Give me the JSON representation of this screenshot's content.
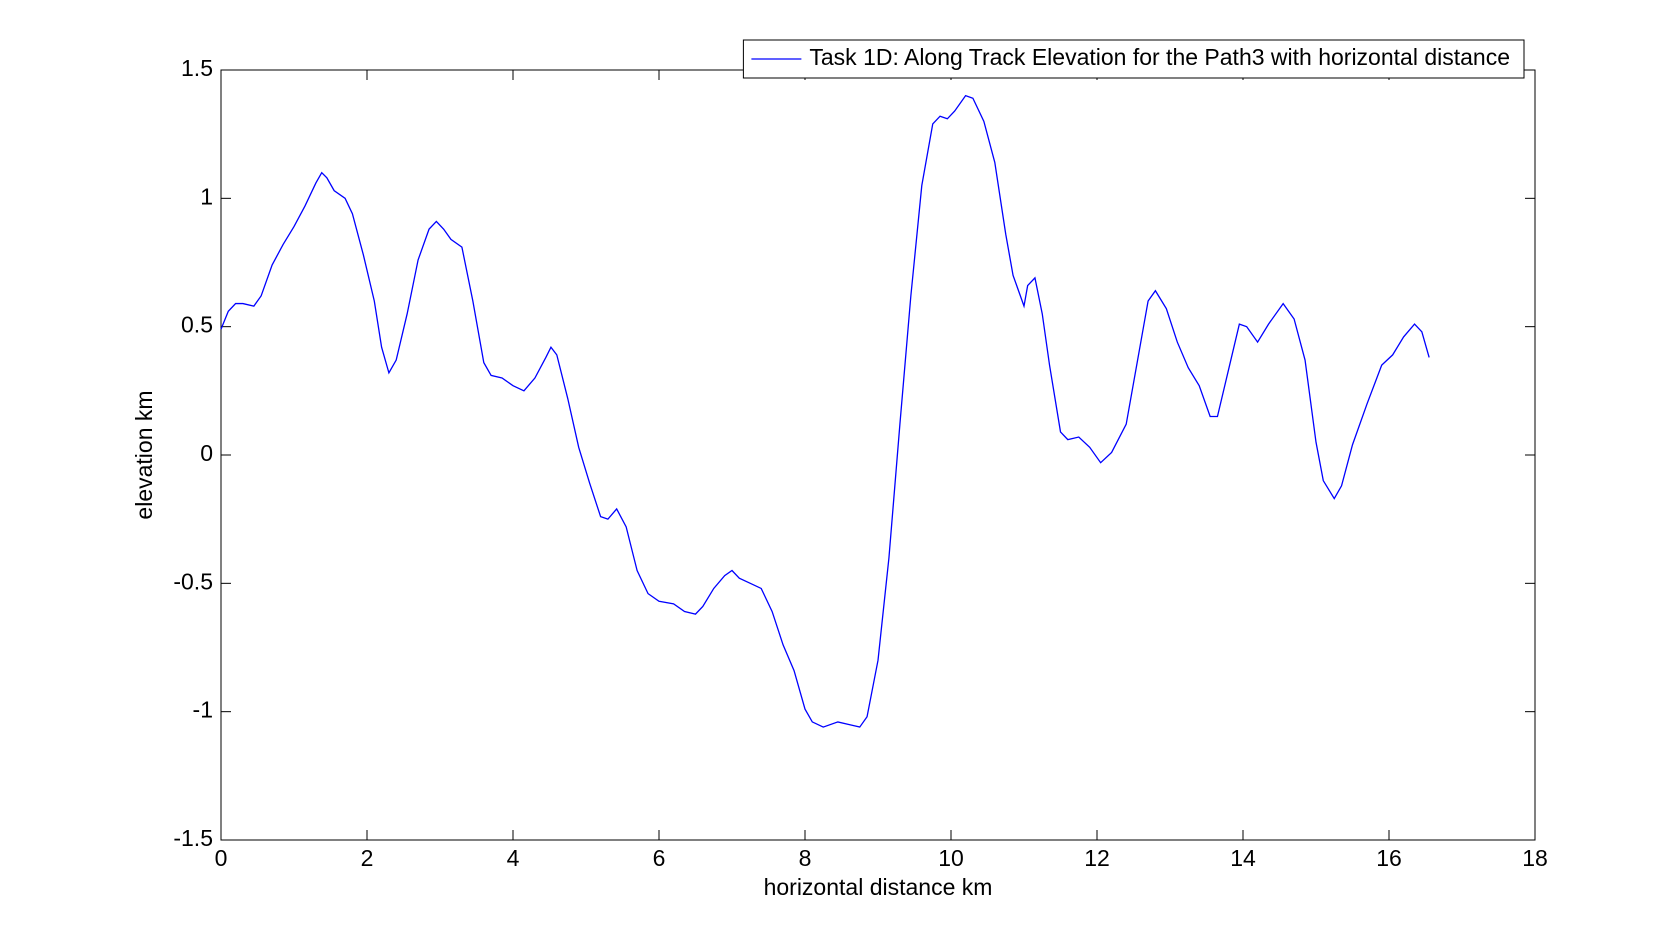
{
  "chart_data": {
    "type": "line",
    "xlabel": "horizontal distance km",
    "ylabel": "elevation km",
    "xlim": [
      0,
      18
    ],
    "xticks": [
      0,
      2,
      4,
      6,
      8,
      10,
      12,
      14,
      16,
      18
    ],
    "ylim": [
      -1.5,
      1.5
    ],
    "yticks": [
      -1.5,
      -1,
      -0.5,
      0,
      0.5,
      1,
      1.5
    ],
    "legend": "north-east",
    "x": [
      0,
      0.1,
      0.2,
      0.3,
      0.45,
      0.55,
      0.7,
      0.85,
      1.0,
      1.15,
      1.3,
      1.38,
      1.45,
      1.55,
      1.7,
      1.8,
      1.95,
      2.1,
      2.2,
      2.3,
      2.4,
      2.55,
      2.7,
      2.85,
      2.95,
      3.05,
      3.15,
      3.3,
      3.45,
      3.6,
      3.7,
      3.85,
      4.0,
      4.15,
      4.3,
      4.45,
      4.52,
      4.6,
      4.75,
      4.9,
      5.05,
      5.2,
      5.3,
      5.42,
      5.55,
      5.7,
      5.85,
      6.0,
      6.2,
      6.35,
      6.5,
      6.6,
      6.75,
      6.9,
      7.0,
      7.1,
      7.25,
      7.4,
      7.55,
      7.7,
      7.85,
      8.0,
      8.1,
      8.25,
      8.45,
      8.6,
      8.75,
      8.85,
      9.0,
      9.15,
      9.3,
      9.45,
      9.6,
      9.75,
      9.85,
      9.95,
      10.05,
      10.2,
      10.3,
      10.45,
      10.6,
      10.75,
      10.85,
      11.0,
      11.05,
      11.15,
      11.25,
      11.35,
      11.5,
      11.6,
      11.75,
      11.9,
      12.05,
      12.2,
      12.4,
      12.55,
      12.7,
      12.8,
      12.95,
      13.1,
      13.25,
      13.4,
      13.55,
      13.65,
      13.8,
      13.95,
      14.05,
      14.2,
      14.35,
      14.55,
      14.7,
      14.85,
      15.0,
      15.1,
      15.25,
      15.35,
      15.5,
      15.7,
      15.9,
      16.05,
      16.2,
      16.35,
      16.45,
      16.55
    ],
    "series": [
      {
        "name": "Task 1D: Along Track Elevation for the Path3 with horizontal distance",
        "color": "#0000ff",
        "values": [
          0.49,
          0.56,
          0.59,
          0.59,
          0.58,
          0.62,
          0.74,
          0.82,
          0.89,
          0.97,
          1.06,
          1.1,
          1.08,
          1.03,
          1.0,
          0.94,
          0.78,
          0.6,
          0.42,
          0.32,
          0.37,
          0.55,
          0.76,
          0.88,
          0.91,
          0.88,
          0.84,
          0.81,
          0.6,
          0.36,
          0.31,
          0.3,
          0.27,
          0.25,
          0.3,
          0.38,
          0.42,
          0.39,
          0.22,
          0.03,
          -0.11,
          -0.24,
          -0.25,
          -0.21,
          -0.28,
          -0.45,
          -0.54,
          -0.57,
          -0.58,
          -0.61,
          -0.62,
          -0.59,
          -0.52,
          -0.47,
          -0.45,
          -0.48,
          -0.5,
          -0.52,
          -0.61,
          -0.74,
          -0.84,
          -0.99,
          -1.04,
          -1.06,
          -1.04,
          -1.05,
          -1.06,
          -1.02,
          -0.8,
          -0.4,
          0.12,
          0.62,
          1.05,
          1.29,
          1.32,
          1.31,
          1.34,
          1.4,
          1.39,
          1.3,
          1.14,
          0.86,
          0.7,
          0.58,
          0.66,
          0.69,
          0.55,
          0.35,
          0.09,
          0.06,
          0.07,
          0.03,
          -0.03,
          0.01,
          0.12,
          0.36,
          0.6,
          0.64,
          0.57,
          0.44,
          0.34,
          0.27,
          0.15,
          0.15,
          0.33,
          0.51,
          0.5,
          0.44,
          0.51,
          0.59,
          0.53,
          0.37,
          0.05,
          -0.1,
          -0.17,
          -0.12,
          0.04,
          0.2,
          0.35,
          0.39,
          0.46,
          0.51,
          0.48,
          0.38
        ]
      }
    ]
  }
}
